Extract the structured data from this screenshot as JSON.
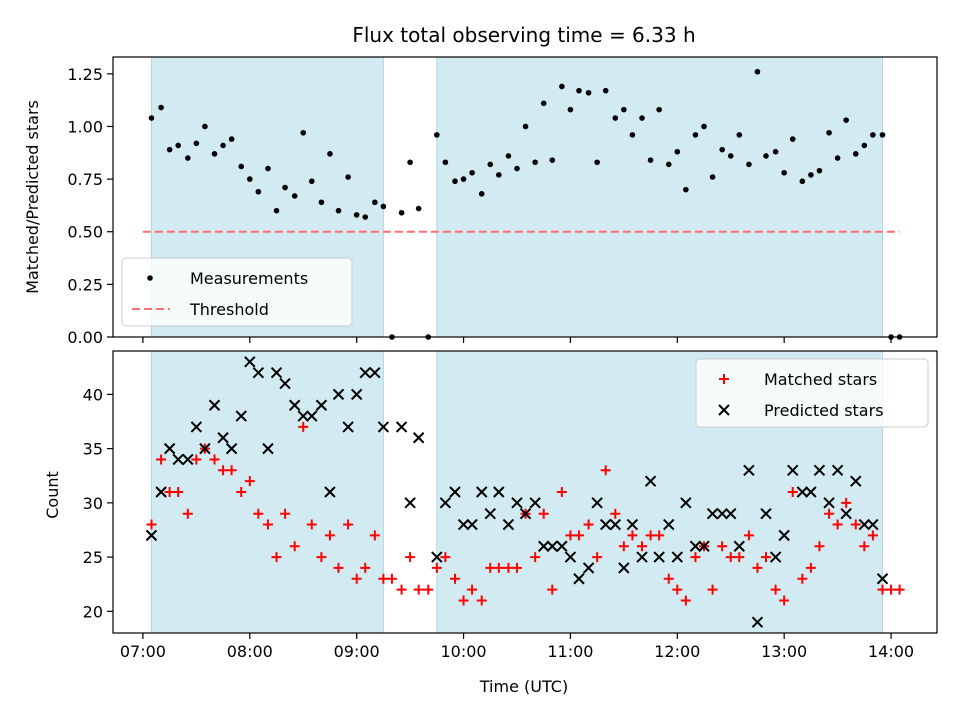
{
  "chart_data": [
    {
      "type": "scatter",
      "title": "Flux total observing time = 6.33 h",
      "ylabel": "Matched/Predicted stars",
      "ylim": [
        0,
        1.33
      ],
      "yticks": [
        0.0,
        0.25,
        0.5,
        0.75,
        1.0,
        1.25
      ],
      "ytick_labels": [
        "0.00",
        "0.25",
        "0.50",
        "0.75",
        "1.00",
        "1.25"
      ],
      "legend_position": "lower-left",
      "shaded_intervals": [
        [
          7.08,
          9.25
        ],
        [
          9.75,
          13.92
        ]
      ],
      "shade_color": "#add8e6",
      "series": [
        {
          "name": "Measurements",
          "marker": "dot",
          "color": "#000000",
          "points": [
            [
              7.08,
              1.04
            ],
            [
              7.17,
              1.09
            ],
            [
              7.25,
              0.89
            ],
            [
              7.33,
              0.91
            ],
            [
              7.42,
              0.85
            ],
            [
              7.5,
              0.92
            ],
            [
              7.58,
              1.0
            ],
            [
              7.67,
              0.87
            ],
            [
              7.75,
              0.91
            ],
            [
              7.83,
              0.94
            ],
            [
              7.92,
              0.81
            ],
            [
              8.0,
              0.75
            ],
            [
              8.08,
              0.69
            ],
            [
              8.17,
              0.8
            ],
            [
              8.25,
              0.6
            ],
            [
              8.33,
              0.71
            ],
            [
              8.42,
              0.67
            ],
            [
              8.5,
              0.97
            ],
            [
              8.58,
              0.74
            ],
            [
              8.67,
              0.64
            ],
            [
              8.75,
              0.87
            ],
            [
              8.83,
              0.6
            ],
            [
              8.92,
              0.76
            ],
            [
              9.0,
              0.58
            ],
            [
              9.08,
              0.57
            ],
            [
              9.17,
              0.64
            ],
            [
              9.25,
              0.62
            ],
            [
              9.33,
              0.0
            ],
            [
              9.42,
              0.59
            ],
            [
              9.5,
              0.83
            ],
            [
              9.58,
              0.61
            ],
            [
              9.67,
              0.0
            ],
            [
              9.75,
              0.96
            ],
            [
              9.83,
              0.83
            ],
            [
              9.92,
              0.74
            ],
            [
              10.0,
              0.75
            ],
            [
              10.08,
              0.78
            ],
            [
              10.17,
              0.68
            ],
            [
              10.25,
              0.82
            ],
            [
              10.33,
              0.77
            ],
            [
              10.42,
              0.86
            ],
            [
              10.5,
              0.8
            ],
            [
              10.58,
              1.0
            ],
            [
              10.67,
              0.83
            ],
            [
              10.75,
              1.11
            ],
            [
              10.83,
              0.84
            ],
            [
              10.92,
              1.19
            ],
            [
              11.0,
              1.08
            ],
            [
              11.08,
              1.17
            ],
            [
              11.17,
              1.16
            ],
            [
              11.25,
              0.83
            ],
            [
              11.33,
              1.17
            ],
            [
              11.42,
              1.04
            ],
            [
              11.5,
              1.08
            ],
            [
              11.58,
              0.96
            ],
            [
              11.67,
              1.04
            ],
            [
              11.75,
              0.84
            ],
            [
              11.83,
              1.08
            ],
            [
              11.92,
              0.82
            ],
            [
              12.0,
              0.88
            ],
            [
              12.08,
              0.7
            ],
            [
              12.17,
              0.96
            ],
            [
              12.25,
              1.0
            ],
            [
              12.33,
              0.76
            ],
            [
              12.42,
              0.89
            ],
            [
              12.5,
              0.86
            ],
            [
              12.58,
              0.96
            ],
            [
              12.67,
              0.82
            ],
            [
              12.75,
              1.26
            ],
            [
              12.83,
              0.86
            ],
            [
              12.92,
              0.88
            ],
            [
              13.0,
              0.78
            ],
            [
              13.08,
              0.94
            ],
            [
              13.17,
              0.74
            ],
            [
              13.25,
              0.77
            ],
            [
              13.33,
              0.79
            ],
            [
              13.42,
              0.97
            ],
            [
              13.5,
              0.85
            ],
            [
              13.58,
              1.03
            ],
            [
              13.67,
              0.87
            ],
            [
              13.75,
              0.91
            ],
            [
              13.83,
              0.96
            ],
            [
              13.92,
              0.96
            ],
            [
              14.0,
              0.0
            ],
            [
              14.08,
              0.0
            ]
          ]
        },
        {
          "name": "Threshold",
          "marker": "dashed-line",
          "color": "#ff6f6f",
          "x": [
            7.0,
            14.08
          ],
          "y": [
            0.5,
            0.5
          ]
        }
      ]
    },
    {
      "type": "scatter",
      "xlabel": "Time (UTC)",
      "ylabel": "Count",
      "xlim": [
        6.72,
        14.43
      ],
      "ylim": [
        18,
        44
      ],
      "xticks": [
        7,
        8,
        9,
        10,
        11,
        12,
        13,
        14
      ],
      "xtick_labels": [
        "07:00",
        "08:00",
        "09:00",
        "10:00",
        "11:00",
        "12:00",
        "13:00",
        "14:00"
      ],
      "yticks": [
        20,
        25,
        30,
        35,
        40
      ],
      "ytick_labels": [
        "20",
        "25",
        "30",
        "35",
        "40"
      ],
      "legend_position": "upper-right",
      "shaded_intervals": [
        [
          7.08,
          9.25
        ],
        [
          9.75,
          13.92
        ]
      ],
      "shade_color": "#add8e6",
      "series": [
        {
          "name": "Matched stars",
          "marker": "plus",
          "color": "#ff0000",
          "points": [
            [
              7.08,
              28
            ],
            [
              7.17,
              34
            ],
            [
              7.25,
              31
            ],
            [
              7.33,
              31
            ],
            [
              7.42,
              29
            ],
            [
              7.5,
              34
            ],
            [
              7.58,
              35
            ],
            [
              7.67,
              34
            ],
            [
              7.75,
              33
            ],
            [
              7.83,
              33
            ],
            [
              7.92,
              31
            ],
            [
              8.0,
              32
            ],
            [
              8.08,
              29
            ],
            [
              8.17,
              28
            ],
            [
              8.25,
              25
            ],
            [
              8.33,
              29
            ],
            [
              8.42,
              26
            ],
            [
              8.5,
              37
            ],
            [
              8.58,
              28
            ],
            [
              8.67,
              25
            ],
            [
              8.75,
              27
            ],
            [
              8.83,
              24
            ],
            [
              8.92,
              28
            ],
            [
              9.0,
              23
            ],
            [
              9.08,
              24
            ],
            [
              9.17,
              27
            ],
            [
              9.25,
              23
            ],
            [
              9.33,
              23
            ],
            [
              9.42,
              22
            ],
            [
              9.5,
              25
            ],
            [
              9.58,
              22
            ],
            [
              9.67,
              22
            ],
            [
              9.75,
              24
            ],
            [
              9.83,
              25
            ],
            [
              9.92,
              23
            ],
            [
              10.0,
              21
            ],
            [
              10.08,
              22
            ],
            [
              10.17,
              21
            ],
            [
              10.25,
              24
            ],
            [
              10.33,
              24
            ],
            [
              10.42,
              24
            ],
            [
              10.5,
              24
            ],
            [
              10.58,
              29
            ],
            [
              10.67,
              25
            ],
            [
              10.75,
              29
            ],
            [
              10.83,
              22
            ],
            [
              10.92,
              31
            ],
            [
              11.0,
              27
            ],
            [
              11.08,
              27
            ],
            [
              11.17,
              28
            ],
            [
              11.25,
              25
            ],
            [
              11.33,
              33
            ],
            [
              11.42,
              29
            ],
            [
              11.5,
              26
            ],
            [
              11.58,
              27
            ],
            [
              11.67,
              26
            ],
            [
              11.75,
              27
            ],
            [
              11.83,
              27
            ],
            [
              11.92,
              23
            ],
            [
              12.0,
              22
            ],
            [
              12.08,
              21
            ],
            [
              12.17,
              25
            ],
            [
              12.25,
              26
            ],
            [
              12.33,
              22
            ],
            [
              12.42,
              26
            ],
            [
              12.5,
              25
            ],
            [
              12.58,
              25
            ],
            [
              12.67,
              27
            ],
            [
              12.75,
              24
            ],
            [
              12.83,
              25
            ],
            [
              12.92,
              22
            ],
            [
              13.0,
              21
            ],
            [
              13.08,
              31
            ],
            [
              13.17,
              23
            ],
            [
              13.25,
              24
            ],
            [
              13.33,
              26
            ],
            [
              13.42,
              29
            ],
            [
              13.5,
              28
            ],
            [
              13.58,
              30
            ],
            [
              13.67,
              28
            ],
            [
              13.75,
              26
            ],
            [
              13.83,
              27
            ],
            [
              13.92,
              22
            ],
            [
              14.0,
              22
            ],
            [
              14.08,
              22
            ]
          ]
        },
        {
          "name": "Predicted stars",
          "marker": "x",
          "color": "#000000",
          "points": [
            [
              7.08,
              27
            ],
            [
              7.17,
              31
            ],
            [
              7.25,
              35
            ],
            [
              7.33,
              34
            ],
            [
              7.42,
              34
            ],
            [
              7.5,
              37
            ],
            [
              7.58,
              35
            ],
            [
              7.67,
              39
            ],
            [
              7.75,
              36
            ],
            [
              7.83,
              35
            ],
            [
              7.92,
              38
            ],
            [
              8.0,
              43
            ],
            [
              8.08,
              42
            ],
            [
              8.17,
              35
            ],
            [
              8.25,
              42
            ],
            [
              8.33,
              41
            ],
            [
              8.42,
              39
            ],
            [
              8.5,
              38
            ],
            [
              8.58,
              38
            ],
            [
              8.67,
              39
            ],
            [
              8.75,
              31
            ],
            [
              8.83,
              40
            ],
            [
              8.92,
              37
            ],
            [
              9.0,
              40
            ],
            [
              9.08,
              42
            ],
            [
              9.17,
              42
            ],
            [
              9.25,
              37
            ],
            [
              9.42,
              37
            ],
            [
              9.5,
              30
            ],
            [
              9.58,
              36
            ],
            [
              9.75,
              25
            ],
            [
              9.83,
              30
            ],
            [
              9.92,
              31
            ],
            [
              10.0,
              28
            ],
            [
              10.08,
              28
            ],
            [
              10.17,
              31
            ],
            [
              10.25,
              29
            ],
            [
              10.33,
              31
            ],
            [
              10.42,
              28
            ],
            [
              10.5,
              30
            ],
            [
              10.58,
              29
            ],
            [
              10.67,
              30
            ],
            [
              10.75,
              26
            ],
            [
              10.83,
              26
            ],
            [
              10.92,
              26
            ],
            [
              11.0,
              25
            ],
            [
              11.08,
              23
            ],
            [
              11.17,
              24
            ],
            [
              11.25,
              30
            ],
            [
              11.33,
              28
            ],
            [
              11.42,
              28
            ],
            [
              11.5,
              24
            ],
            [
              11.58,
              28
            ],
            [
              11.67,
              25
            ],
            [
              11.75,
              32
            ],
            [
              11.83,
              25
            ],
            [
              11.92,
              28
            ],
            [
              12.0,
              25
            ],
            [
              12.08,
              30
            ],
            [
              12.17,
              26
            ],
            [
              12.25,
              26
            ],
            [
              12.33,
              29
            ],
            [
              12.42,
              29
            ],
            [
              12.5,
              29
            ],
            [
              12.58,
              26
            ],
            [
              12.67,
              33
            ],
            [
              12.75,
              19
            ],
            [
              12.83,
              29
            ],
            [
              12.92,
              25
            ],
            [
              13.0,
              27
            ],
            [
              13.08,
              33
            ],
            [
              13.17,
              31
            ],
            [
              13.25,
              31
            ],
            [
              13.33,
              33
            ],
            [
              13.42,
              30
            ],
            [
              13.5,
              33
            ],
            [
              13.58,
              29
            ],
            [
              13.67,
              32
            ],
            [
              13.75,
              28
            ],
            [
              13.83,
              28
            ],
            [
              13.92,
              23
            ]
          ]
        }
      ]
    }
  ]
}
